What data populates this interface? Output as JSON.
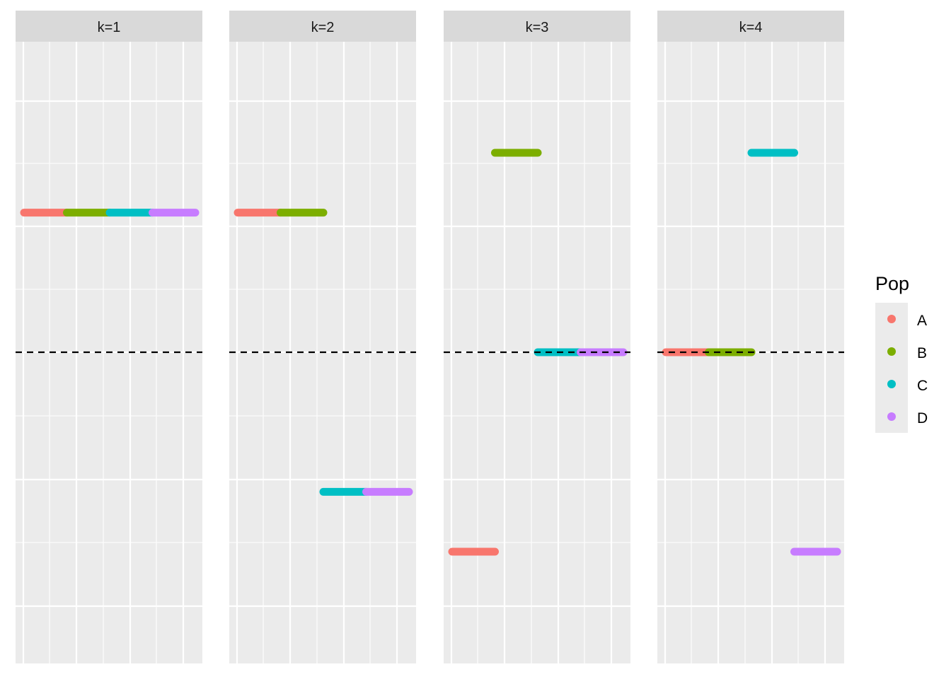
{
  "chart_data": {
    "type": "line",
    "facet_variable": "k",
    "panels": [
      {
        "label": "k=1",
        "segments": [
          {
            "pop": "A",
            "x": [
              1,
              2
            ],
            "y": 0.7
          },
          {
            "pop": "B",
            "x": [
              2,
              3
            ],
            "y": 0.7
          },
          {
            "pop": "C",
            "x": [
              3,
              4
            ],
            "y": 0.7
          },
          {
            "pop": "D",
            "x": [
              4,
              5
            ],
            "y": 0.7
          }
        ]
      },
      {
        "label": "k=2",
        "segments": [
          {
            "pop": "A",
            "x": [
              1,
              2
            ],
            "y": 0.7
          },
          {
            "pop": "B",
            "x": [
              2,
              3
            ],
            "y": 0.7
          },
          {
            "pop": "C",
            "x": [
              3,
              4
            ],
            "y": -0.7
          },
          {
            "pop": "D",
            "x": [
              4,
              5
            ],
            "y": -0.7
          }
        ]
      },
      {
        "label": "k=3",
        "segments": [
          {
            "pop": "A",
            "x": [
              1,
              2
            ],
            "y": -1.0
          },
          {
            "pop": "B",
            "x": [
              2,
              3
            ],
            "y": 1.0
          },
          {
            "pop": "C",
            "x": [
              3,
              4
            ],
            "y": 0.0
          },
          {
            "pop": "D",
            "x": [
              4,
              5
            ],
            "y": 0.0
          }
        ]
      },
      {
        "label": "k=4",
        "segments": [
          {
            "pop": "A",
            "x": [
              1,
              2
            ],
            "y": 0.0
          },
          {
            "pop": "B",
            "x": [
              2,
              3
            ],
            "y": 0.0
          },
          {
            "pop": "C",
            "x": [
              3,
              4
            ],
            "y": 1.0
          },
          {
            "pop": "D",
            "x": [
              4,
              5
            ],
            "y": -1.0
          }
        ]
      }
    ],
    "reference_line": {
      "y": 0,
      "style": "dashed",
      "color": "#000000"
    },
    "xlim": [
      1,
      5
    ],
    "ylim": [
      -1,
      1
    ],
    "grid": true,
    "legend": {
      "title": "Pop",
      "position": "right",
      "items": [
        {
          "label": "A",
          "color": "#F8766D"
        },
        {
          "label": "B",
          "color": "#7CAE00"
        },
        {
          "label": "C",
          "color": "#00BFC4"
        },
        {
          "label": "D",
          "color": "#C77CFF"
        }
      ]
    },
    "title": "",
    "xlabel": "",
    "ylabel": ""
  }
}
